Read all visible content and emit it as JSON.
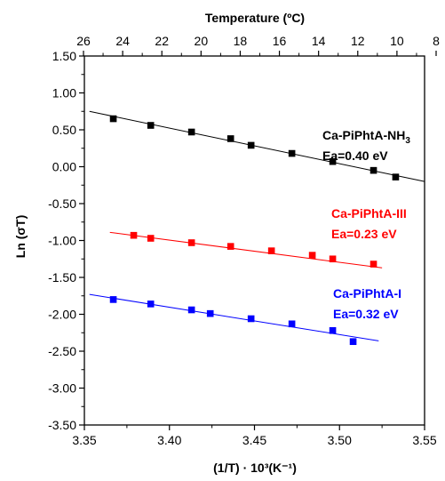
{
  "chart_data": {
    "type": "scatter",
    "xlabel": "(1/T) · 10³(K⁻¹)",
    "ylabel": "Ln (σT)",
    "top_xlabel": "Temperature (ºC)",
    "xlim": [
      3.35,
      3.55
    ],
    "ylim": [
      -3.5,
      1.5
    ],
    "x_ticks": [
      3.35,
      3.4,
      3.45,
      3.5,
      3.55
    ],
    "x_tick_labels": [
      "3.35",
      "3.40",
      "3.45",
      "3.50",
      "3.55"
    ],
    "y_ticks": [
      1.5,
      1.0,
      0.5,
      0.0,
      -0.5,
      -1.0,
      -1.5,
      -2.0,
      -2.5,
      -3.0,
      -3.5
    ],
    "y_tick_labels": [
      "1.50",
      "1.00",
      "0.50",
      "0.00",
      "-0.50",
      "-1.00",
      "-1.50",
      "-2.00",
      "-2.50",
      "-3.00",
      "-3.50"
    ],
    "top_ticks": [
      26,
      24,
      22,
      20,
      18,
      16,
      14,
      12,
      10,
      8
    ],
    "top_tick_labels": [
      "26",
      "24",
      "22",
      "20",
      "18",
      "16",
      "14",
      "12",
      "10",
      "8"
    ],
    "grid": false,
    "series": [
      {
        "name": "Ca-PiPhtA-NH3",
        "ea": "Ea=0.40 eV",
        "color": "#000000",
        "x": [
          3.367,
          3.389,
          3.413,
          3.436,
          3.448,
          3.472,
          3.496,
          3.52,
          3.533
        ],
        "y": [
          0.65,
          0.56,
          0.47,
          0.38,
          0.29,
          0.18,
          0.07,
          -0.05,
          -0.14
        ],
        "fit": [
          [
            3.353,
            0.75
          ],
          [
            3.55,
            -0.2
          ]
        ]
      },
      {
        "name": "Ca-PiPhtA-III",
        "ea": "Ea=0.23 eV",
        "color": "#ff0000",
        "x": [
          3.379,
          3.389,
          3.413,
          3.436,
          3.46,
          3.484,
          3.496,
          3.52
        ],
        "y": [
          -0.93,
          -0.97,
          -1.03,
          -1.08,
          -1.14,
          -1.2,
          -1.25,
          -1.32
        ],
        "fit": [
          [
            3.365,
            -0.89
          ],
          [
            3.525,
            -1.37
          ]
        ]
      },
      {
        "name": "Ca-PiPhtA-I",
        "ea": "Ea=0.32 eV",
        "color": "#0000ff",
        "x": [
          3.367,
          3.389,
          3.413,
          3.424,
          3.448,
          3.472,
          3.496,
          3.508
        ],
        "y": [
          -1.8,
          -1.86,
          -1.94,
          -1.99,
          -2.06,
          -2.13,
          -2.22,
          -2.37
        ],
        "fit": [
          [
            3.353,
            -1.73
          ],
          [
            3.523,
            -2.36
          ]
        ]
      }
    ]
  },
  "labels": {
    "nh3_base": "Ca-PiPhtA-NH",
    "nh3_sub": "3"
  }
}
